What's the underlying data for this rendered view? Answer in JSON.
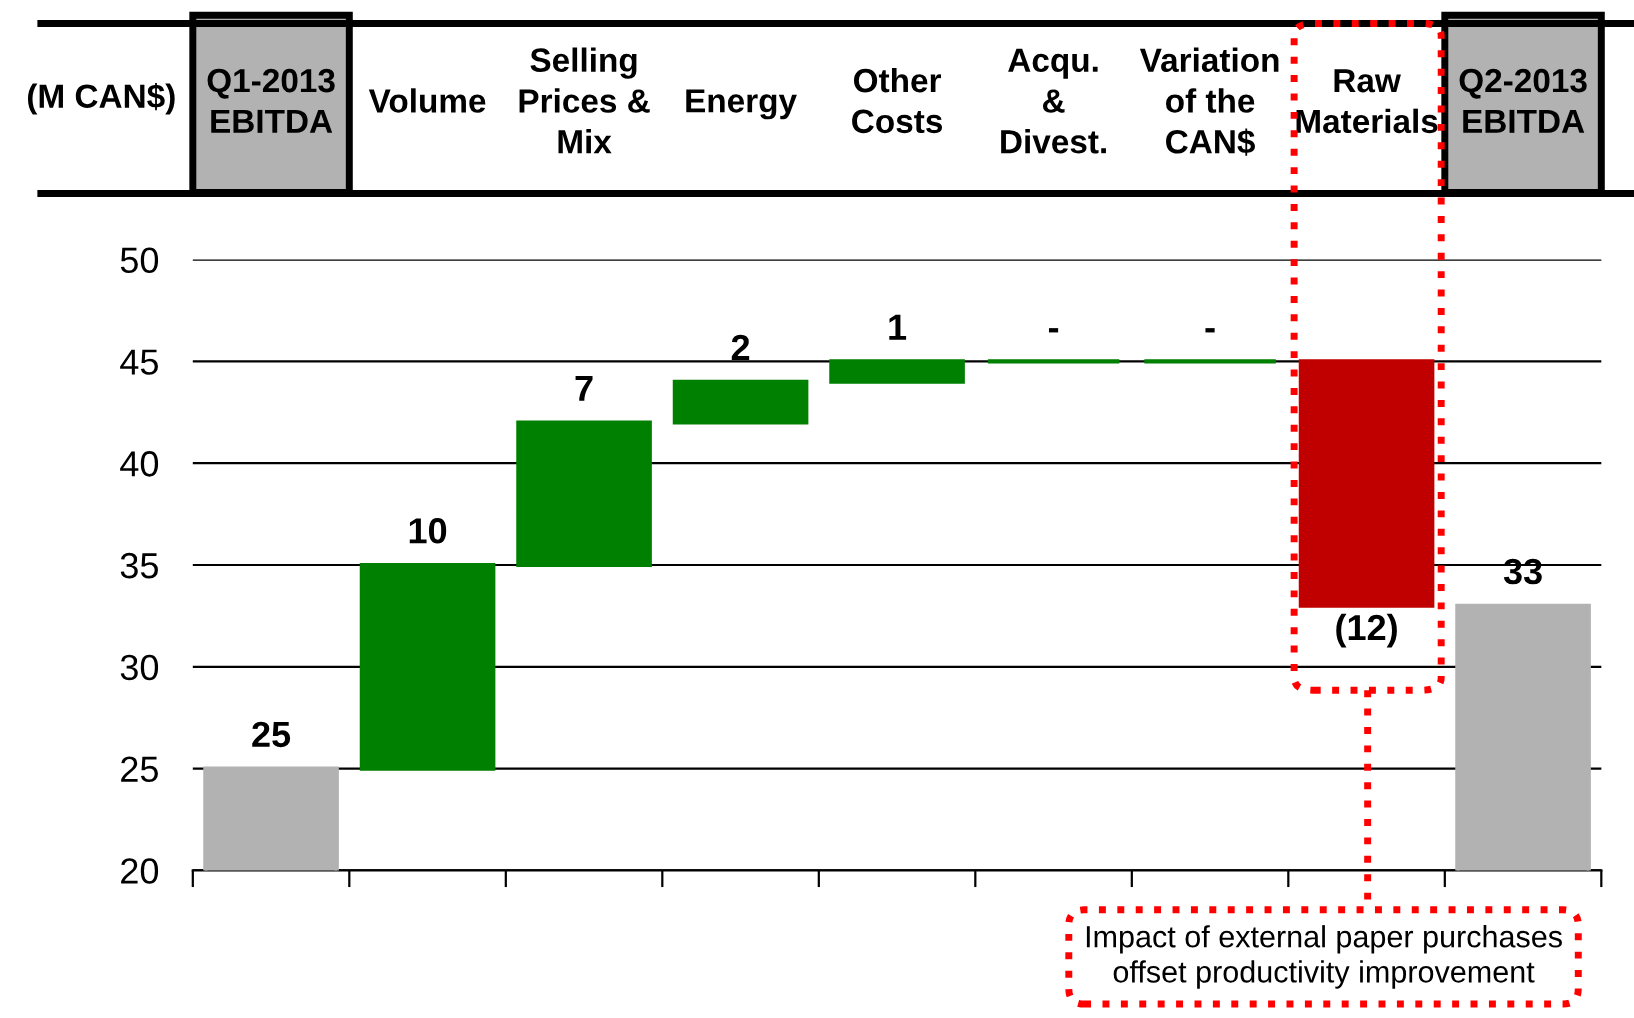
{
  "chart_data": {
    "type": "bar",
    "ylabel": "(M CAN$)",
    "categories": [
      "Q1-2013\nEBITDA",
      "Volume",
      "Selling\nPrices &\nMix",
      "Energy",
      "Other\nCosts",
      "Acqu.\n&\nDivest.",
      "Variation\nof the\nCAN$",
      "Raw\nMaterials",
      "Q2-2013\nEBITDA"
    ],
    "values": [
      25,
      10,
      7,
      2,
      1,
      0,
      0,
      -12,
      33
    ],
    "base": [
      null,
      25,
      35,
      42,
      44,
      45,
      45,
      45,
      null
    ],
    "colors": [
      "#b2b2b2",
      "#008000",
      "#008000",
      "#008000",
      "#008000",
      "#008000",
      "#008000",
      "#c00000",
      "#b2b2b2"
    ],
    "value_labels": [
      "25",
      "10",
      "7",
      "2",
      "1",
      "-",
      "-",
      "(12)",
      "33"
    ],
    "ylim": [
      20,
      50
    ],
    "yticks": [
      20,
      25,
      30,
      35,
      40,
      45,
      50
    ],
    "grid": "y",
    "annotations": [
      "Impact of external paper purchases\noffset productivity improvement"
    ]
  }
}
